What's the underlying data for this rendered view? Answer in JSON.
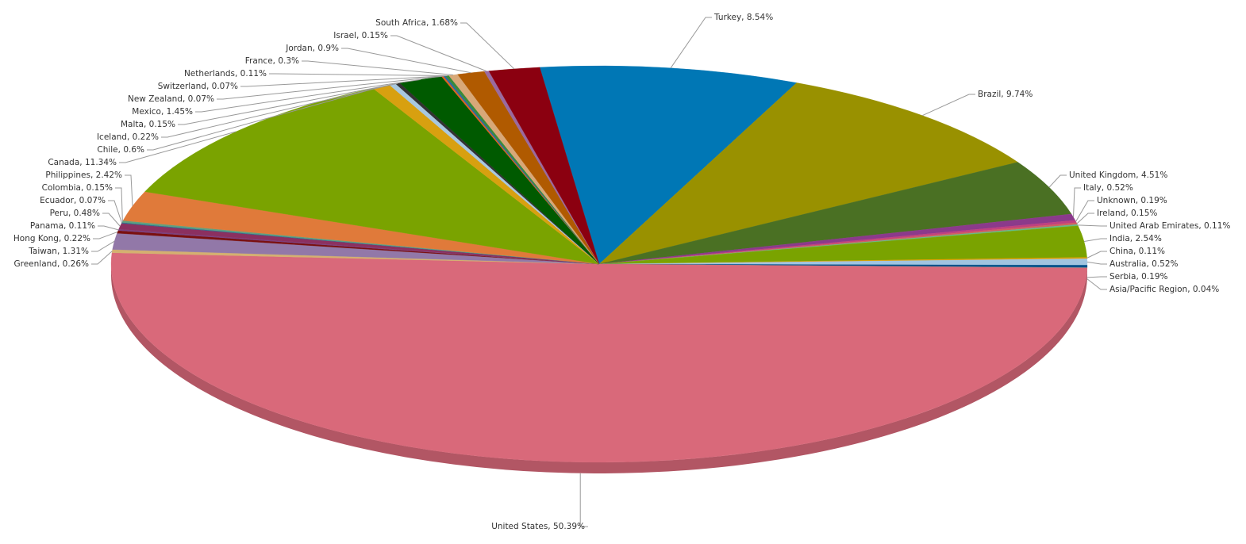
{
  "chart_data": {
    "type": "pie",
    "value_labels": [
      "Turkey, 8.54%",
      "Brazil, 9.74%",
      "United Kingdom, 4.51%",
      "Italy, 0.52%",
      "Unknown, 0.19%",
      "Ireland, 0.15%",
      "United Arab Emirates, 0.11%",
      "India, 2.54%",
      "China, 0.11%",
      "Australia, 0.52%",
      "Serbia, 0.19%",
      "Asia/Pacific Region, 0.04%",
      "United States, 50.39%",
      "Greenland, 0.26%",
      "Taiwan, 1.31%",
      "Hong Kong, 0.22%",
      "Panama, 0.11%",
      "Peru, 0.48%",
      "Ecuador, 0.07%",
      "Colombia, 0.15%",
      "Philippines, 2.42%",
      "Canada, 11.34%",
      "Chile, 0.6%",
      "Iceland, 0.22%",
      "Malta, 0.15%",
      "Mexico, 1.45%",
      "New Zealand, 0.07%",
      "Switzerland, 0.07%",
      "Netherlands, 0.11%",
      "France, 0.3%",
      "Jordan, 0.9%",
      "Israel, 0.15%",
      "South Africa, 1.68%"
    ],
    "values": [
      8.54,
      9.74,
      4.51,
      0.52,
      0.19,
      0.15,
      0.11,
      2.54,
      0.11,
      0.52,
      0.19,
      0.04,
      50.39,
      0.26,
      1.31,
      0.22,
      0.11,
      0.48,
      0.07,
      0.15,
      2.42,
      11.34,
      0.6,
      0.22,
      0.15,
      1.45,
      0.07,
      0.07,
      0.11,
      0.3,
      0.9,
      0.15,
      1.68
    ],
    "colors": [
      "#0077b5",
      "#999100",
      "#4a7023",
      "#8b3a8b",
      "#c04080",
      "#d06060",
      "#66bb88",
      "#7aa300",
      "#e0a000",
      "#a0c4e0",
      "#00508a",
      "#888888",
      "#d9697a",
      "#d4b070",
      "#9278a8",
      "#7a1010",
      "#7a4080",
      "#8b3060",
      "#2a7090",
      "#60a080",
      "#e07a3a",
      "#7aa300",
      "#d8a010",
      "#a8c8e0",
      "#333333",
      "#005a00",
      "#e06020",
      "#2a6aa0",
      "#3a8a3a",
      "#d8a878",
      "#b05a00",
      "#9a6aa0",
      "#8b0010"
    ]
  }
}
